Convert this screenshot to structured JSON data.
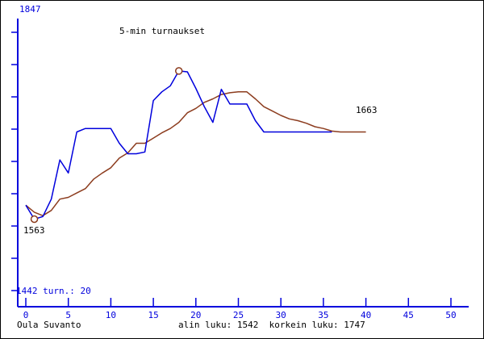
{
  "title": "5-min turnaukset",
  "y_axis": {
    "top_label": "1847",
    "bottom_label": "1442 turn.: 20"
  },
  "x_axis": {
    "ticks": [
      0,
      5,
      10,
      15,
      20,
      25,
      30,
      35,
      40,
      45,
      50
    ]
  },
  "annotations": {
    "low_point": "1563",
    "final_value": "1663"
  },
  "footer": {
    "author": "Oula Suvanto",
    "stats": "alin luku: 1542  korkein luku: 1747"
  },
  "colors": {
    "axis_blue": "#0000DD",
    "rating_blue": "#0000DD",
    "average_brown": "#8C3C1E",
    "text_black": "#000000",
    "background": "#FFFFFF",
    "border": "#000000"
  },
  "chart_data": {
    "type": "line",
    "title": "5-min turnaukset",
    "xlabel": "",
    "ylabel": "",
    "x_tick_values": [
      0,
      5,
      10,
      15,
      20,
      25,
      30,
      35,
      40,
      45,
      50
    ],
    "y_range": [
      1442,
      1847
    ],
    "grid": false,
    "legend": "none",
    "x": [
      0,
      1,
      2,
      3,
      4,
      5,
      6,
      7,
      8,
      9,
      10,
      11,
      12,
      13,
      14,
      15,
      16,
      17,
      18,
      19,
      20,
      21,
      22,
      23,
      24,
      25,
      26,
      27,
      28,
      29,
      30,
      31,
      32,
      33,
      34,
      35,
      36,
      37,
      38,
      39,
      40
    ],
    "series": [
      {
        "name": "rating",
        "color": "#0000DD",
        "values": [
          1579,
          1563,
          1566,
          1586,
          1631,
          1616,
          1663,
          1667,
          1667,
          1667,
          1667,
          1650,
          1638,
          1638,
          1640,
          1699,
          1709,
          1716,
          1733,
          1732,
          1713,
          1692,
          1674,
          1712,
          1695,
          1695,
          1695,
          1676,
          1663,
          1663,
          1663,
          1663,
          1663,
          1663,
          1663,
          1663,
          1663,
          null,
          null,
          null,
          null
        ]
      },
      {
        "name": "moving-average",
        "color": "#8C3C1E",
        "values": [
          1579,
          1571,
          1567,
          1573,
          1586,
          1588,
          1593,
          1598,
          1609,
          1616,
          1622,
          1633,
          1639,
          1650,
          1650,
          1656,
          1662,
          1667,
          1674,
          1685,
          1690,
          1697,
          1701,
          1706,
          1708,
          1709,
          1709,
          1701,
          1692,
          1687,
          1682,
          1678,
          1676,
          1673,
          1669,
          1667,
          1664,
          1663,
          1663,
          1663,
          1663
        ]
      }
    ],
    "markers": [
      {
        "series": "rating",
        "x": 1,
        "value": 1563,
        "label": "1563"
      },
      {
        "series": "rating",
        "x": 18,
        "value": 1733,
        "label": "1663 (final flat value labeled at right)"
      }
    ],
    "annotations": [
      {
        "text": "1563",
        "near": "low point marker"
      },
      {
        "text": "1663",
        "near": "right end of lines"
      },
      {
        "text": "alin luku: 1542",
        "near": "footer"
      },
      {
        "text": "korkein luku: 1747",
        "near": "footer"
      }
    ]
  }
}
